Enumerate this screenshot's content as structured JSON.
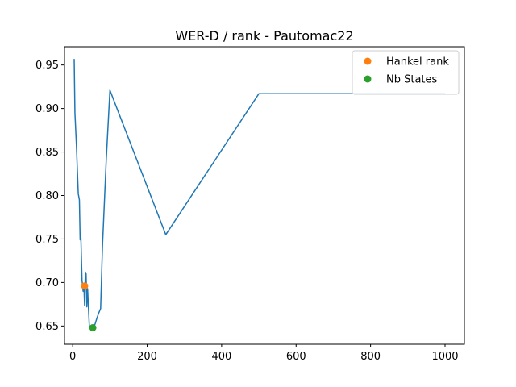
{
  "chart_data": {
    "type": "line",
    "title": "WER-D / rank - Pautomac22",
    "xlabel": "",
    "ylabel": "",
    "xlim": [
      -22,
      1052
    ],
    "ylim": [
      0.629,
      0.971
    ],
    "xticks": [
      0,
      200,
      400,
      600,
      800,
      1000
    ],
    "xtick_labels": [
      "0",
      "200",
      "400",
      "600",
      "800",
      "1000"
    ],
    "yticks": [
      0.65,
      0.7,
      0.75,
      0.8,
      0.85,
      0.9,
      0.95
    ],
    "ytick_labels": [
      "0.65",
      "0.70",
      "0.75",
      "0.80",
      "0.85",
      "0.90",
      "0.95"
    ],
    "grid": false,
    "legend_position": "upper right",
    "series": [
      {
        "name": "",
        "kind": "line",
        "color": "#1f77b4",
        "x": [
          4,
          6,
          10,
          15,
          18,
          20,
          22,
          25,
          28,
          30,
          32,
          34,
          36,
          38,
          40,
          45,
          50,
          55,
          60,
          65,
          70,
          75,
          80,
          90,
          100,
          250,
          500,
          1000
        ],
        "y": [
          0.957,
          0.895,
          0.858,
          0.802,
          0.795,
          0.749,
          0.752,
          0.703,
          0.69,
          0.697,
          0.674,
          0.712,
          0.71,
          0.672,
          0.693,
          0.647,
          0.648,
          0.65,
          0.652,
          0.659,
          0.665,
          0.67,
          0.742,
          0.84,
          0.921,
          0.755,
          0.917,
          0.917
        ]
      },
      {
        "name": "Hankel rank",
        "kind": "marker",
        "color": "#ff7f0e",
        "x": [
          32
        ],
        "y": [
          0.696
        ]
      },
      {
        "name": "Nb States",
        "kind": "marker",
        "color": "#2ca02c",
        "x": [
          54
        ],
        "y": [
          0.648
        ]
      }
    ]
  }
}
